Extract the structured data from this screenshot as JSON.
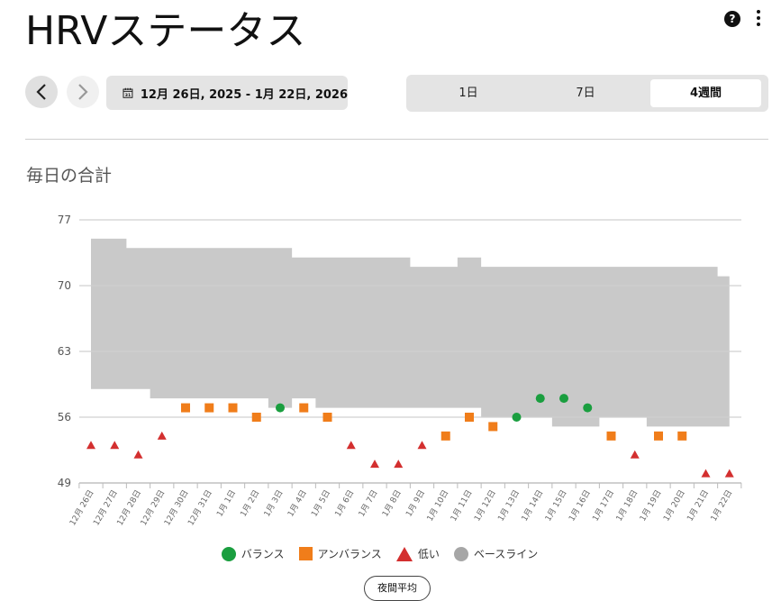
{
  "header": {
    "title": "HRVステータス"
  },
  "toolbar": {
    "date_range": "12月 26日, 2025 - 1月 22日, 2026",
    "calendar_day": "31",
    "segments": [
      "1日",
      "7日",
      "4週間"
    ],
    "selected_segment": "4週間"
  },
  "section": {
    "title": "毎日の合計"
  },
  "colors": {
    "balanced": "#1a9e3f",
    "unbalanced": "#f07d1a",
    "low": "#d32f2f",
    "baseline": "#a6a6a6",
    "band": "#c9c9c9"
  },
  "legend": [
    {
      "label": "バランス",
      "shape": "circle",
      "color": "#1a9e3f"
    },
    {
      "label": "アンバランス",
      "shape": "square",
      "color": "#f07d1a"
    },
    {
      "label": "低い",
      "shape": "triangle",
      "color": "#d32f2f"
    },
    {
      "label": "ベースライン",
      "shape": "circle",
      "color": "#a6a6a6"
    }
  ],
  "avg_button": "夜間平均",
  "chart_data": {
    "type": "scatter",
    "title": "毎日の合計",
    "ylim": [
      49,
      77
    ],
    "yticks": [
      49,
      56,
      63,
      70,
      77
    ],
    "grid": true,
    "legend_position": "bottom",
    "categories": [
      "12月 26日",
      "12月 27日",
      "12月 28日",
      "12月 29日",
      "12月 30日",
      "12月 31日",
      "1月 1日",
      "1月 2日",
      "1月 3日",
      "1月 4日",
      "1月 5日",
      "1月 6日",
      "1月 7日",
      "1月 8日",
      "1月 9日",
      "1月 10日",
      "1月 11日",
      "1月 12日",
      "1月 13日",
      "1月 14日",
      "1月 15日",
      "1月 16日",
      "1月 17日",
      "1月 18日",
      "1月 19日",
      "1月 20日",
      "1月 21日",
      "1月 22日"
    ],
    "values": [
      53,
      53,
      52,
      54,
      57,
      57,
      57,
      56,
      57,
      57,
      56,
      53,
      51,
      51,
      53,
      54,
      56,
      55,
      56,
      58,
      58,
      57,
      54,
      52,
      54,
      54,
      50,
      50
    ],
    "status": [
      "low",
      "low",
      "low",
      "low",
      "unbalanced",
      "unbalanced",
      "unbalanced",
      "unbalanced",
      "balanced",
      "unbalanced",
      "unbalanced",
      "low",
      "low",
      "low",
      "low",
      "unbalanced",
      "unbalanced",
      "unbalanced",
      "balanced",
      "balanced",
      "balanced",
      "balanced",
      "unbalanced",
      "low",
      "unbalanced",
      "unbalanced",
      "low",
      "low"
    ],
    "baseline_upper": [
      75,
      75,
      74,
      74,
      74,
      74,
      74,
      74,
      74,
      73,
      73,
      73,
      73,
      73,
      72,
      72,
      73,
      72,
      72,
      72,
      72,
      72,
      72,
      72,
      72,
      72,
      72,
      71
    ],
    "baseline_lower": [
      59,
      59,
      59,
      58,
      58,
      58,
      58,
      58,
      57,
      58,
      57,
      57,
      57,
      57,
      57,
      57,
      57,
      56,
      56,
      56,
      55,
      55,
      56,
      56,
      55,
      55,
      55,
      55
    ]
  }
}
